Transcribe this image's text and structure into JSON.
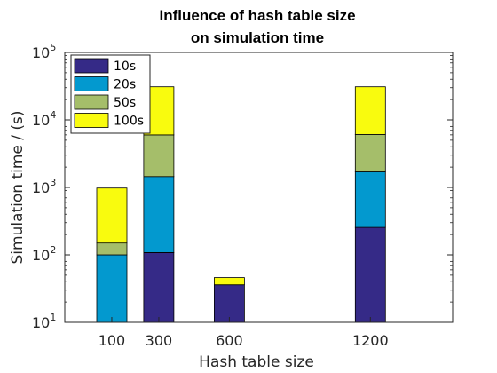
{
  "chart_data": {
    "type": "bar",
    "stacked": true,
    "title": [
      "Influence of hash table size",
      "on simulation time"
    ],
    "xlabel": "Hash table size",
    "ylabel": "Simulation time  / (s)",
    "yscale": "log",
    "ylim": [
      10,
      100000
    ],
    "xlim": [
      -100,
      1550
    ],
    "x_positions": [
      100,
      300,
      600,
      1200
    ],
    "categories": [
      "100",
      "300",
      "600",
      "1200"
    ],
    "yticks": [
      {
        "value": 10,
        "base": "10",
        "exp": "1"
      },
      {
        "value": 100,
        "base": "10",
        "exp": "2"
      },
      {
        "value": 1000,
        "base": "10",
        "exp": "3"
      },
      {
        "value": 10000,
        "base": "10",
        "exp": "4"
      },
      {
        "value": 100000,
        "base": "10",
        "exp": "5"
      }
    ],
    "series": [
      {
        "name": "10s",
        "color": "#352a87",
        "values": [
          0,
          108,
          36,
          255
        ]
      },
      {
        "name": "20s",
        "color": "#0399cf",
        "values": [
          100,
          1450,
          0,
          1700
        ]
      },
      {
        "name": "50s",
        "color": "#a5be6a",
        "values": [
          150,
          6000,
          0,
          6100
        ]
      },
      {
        "name": "100s",
        "color": "#f9fb0e",
        "values": [
          980,
          31000,
          46,
          31000
        ]
      }
    ],
    "series_values_are_cumulative": true,
    "legend_position": "top-left",
    "grid": false
  }
}
